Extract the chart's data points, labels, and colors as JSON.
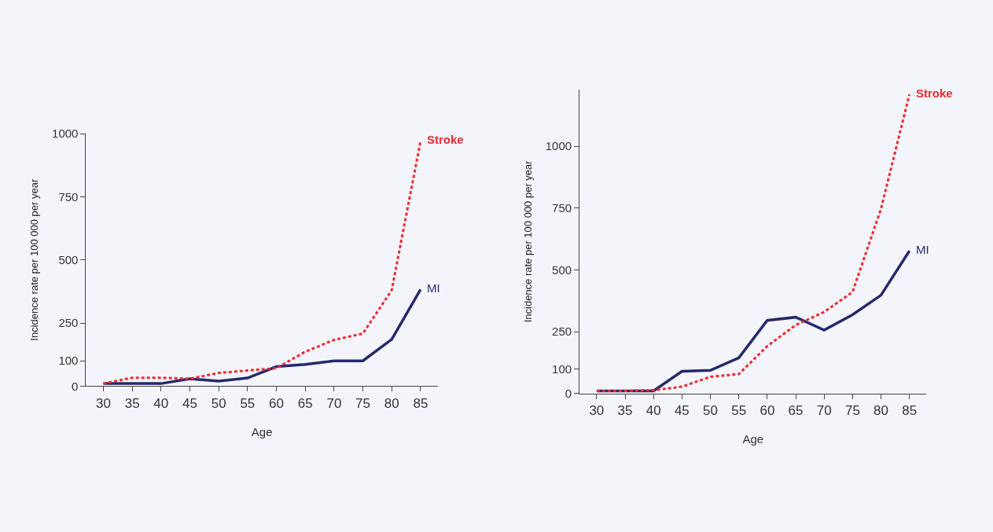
{
  "chart_data": [
    {
      "type": "line",
      "xlabel": "Age",
      "ylabel": "Incidence rate per 100 000 per year",
      "x": [
        30,
        35,
        40,
        45,
        50,
        55,
        60,
        65,
        70,
        75,
        80,
        85
      ],
      "xlim": [
        27,
        88
      ],
      "xticks": [
        30,
        35,
        40,
        45,
        50,
        55,
        60,
        65,
        70,
        75,
        80,
        85
      ],
      "ylim": [
        0,
        1000
      ],
      "yticks": [
        0,
        100,
        250,
        500,
        750,
        1000
      ],
      "grid": false,
      "legend": false,
      "marker": "none",
      "series": [
        {
          "name": "Stroke",
          "color": "#ee2a33",
          "line_style": "dotted",
          "values": [
            10,
            33,
            33,
            29,
            52,
            62,
            71,
            136,
            183,
            208,
            380,
            970
          ]
        },
        {
          "name": "MI",
          "color": "#262a6b",
          "line_style": "solid",
          "values": [
            10,
            10,
            10,
            29,
            20,
            32,
            77,
            86,
            100,
            100,
            185,
            383
          ]
        }
      ]
    },
    {
      "type": "line",
      "xlabel": "Age",
      "ylabel": "Incidence rate per 100 000 per year",
      "x": [
        30,
        35,
        40,
        45,
        50,
        55,
        60,
        65,
        70,
        75,
        80,
        85
      ],
      "xlim": [
        27,
        88
      ],
      "xticks": [
        30,
        35,
        40,
        45,
        50,
        55,
        60,
        65,
        70,
        75,
        80,
        85
      ],
      "ylim": [
        0,
        1230
      ],
      "yticks": [
        0,
        100,
        250,
        500,
        750,
        1000
      ],
      "grid": false,
      "legend": false,
      "marker": "none",
      "series": [
        {
          "name": "Stroke",
          "color": "#ee2a33",
          "line_style": "dotted",
          "values": [
            11,
            11,
            14,
            28,
            68,
            79,
            192,
            277,
            330,
            411,
            747,
            1210
          ]
        },
        {
          "name": "MI",
          "color": "#262a6b",
          "line_style": "solid",
          "values": [
            11,
            11,
            11,
            90,
            94,
            145,
            296,
            309,
            257,
            319,
            398,
            577
          ]
        }
      ]
    }
  ]
}
